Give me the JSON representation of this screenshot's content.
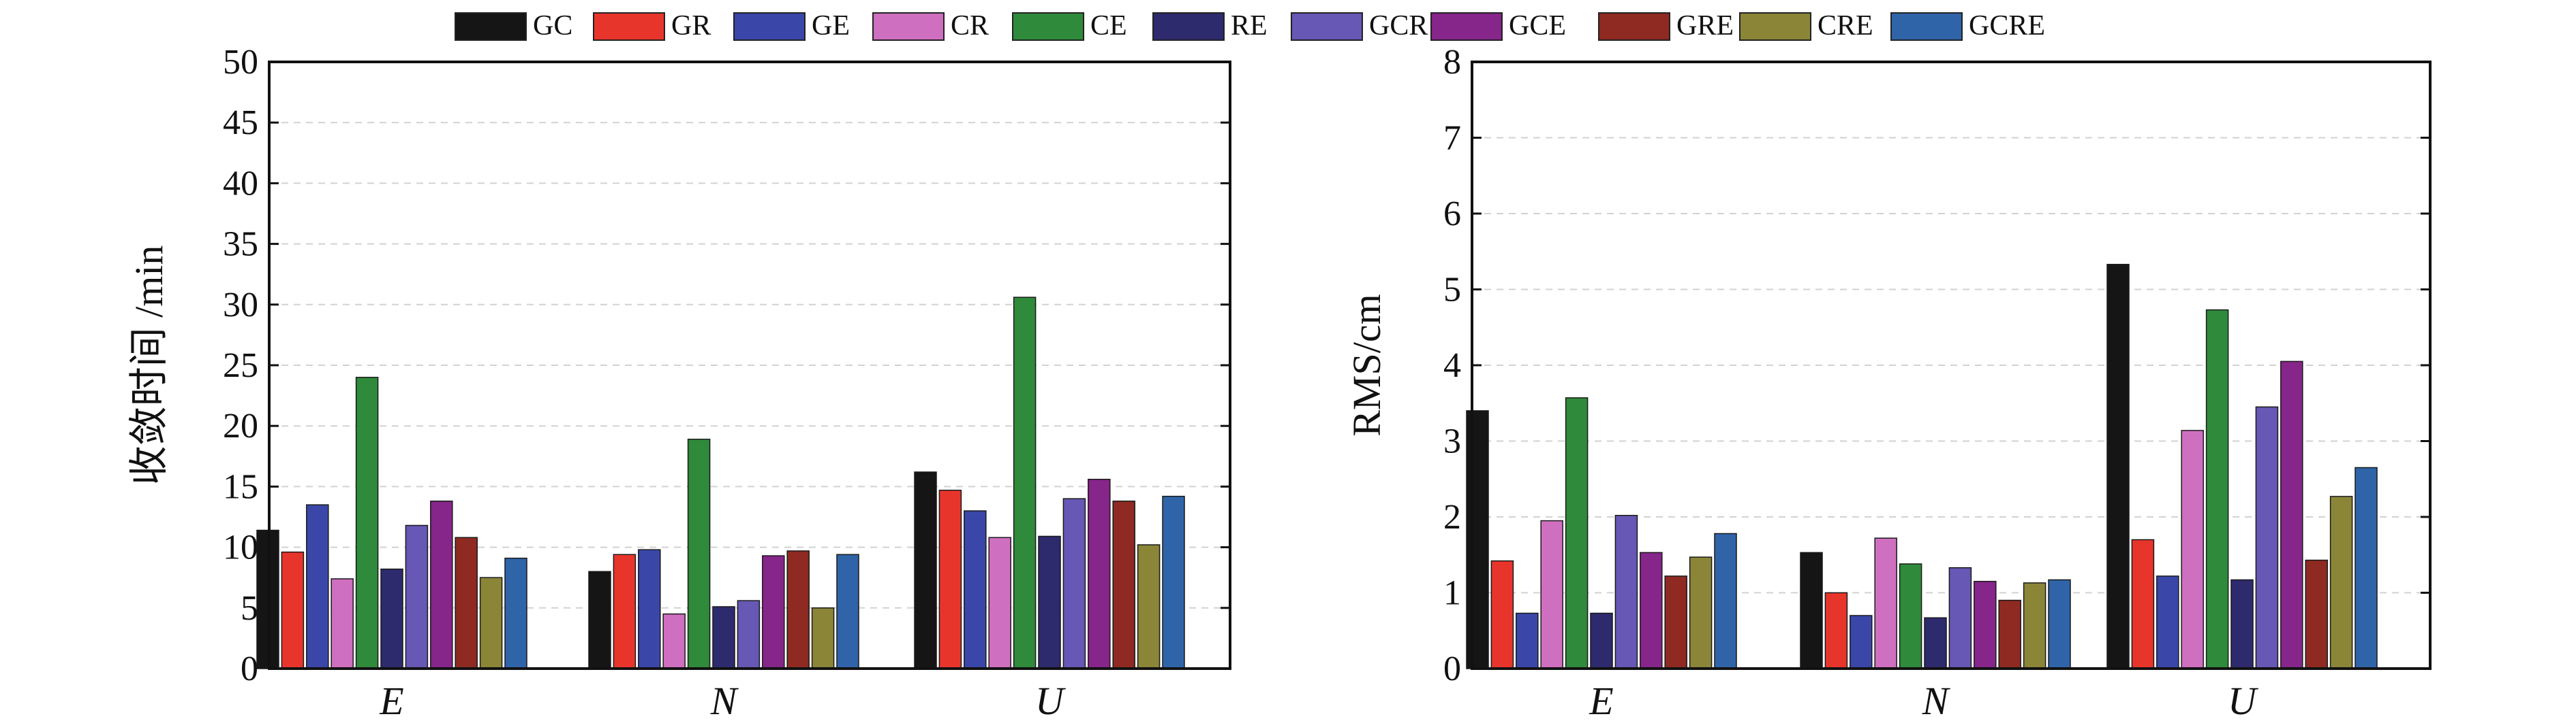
{
  "series_colors": {
    "GC": "#151515",
    "GR": "#e8352c",
    "GE": "#3a47a8",
    "CR": "#cf6fc0",
    "CE": "#2f8a3b",
    "RE": "#2e2a6e",
    "GCR": "#6658b4",
    "GCE": "#86258a",
    "GRE": "#8e2a22",
    "CRE": "#8b8538",
    "GCRE": "#2f64a8"
  },
  "chart_data": [
    {
      "type": "bar",
      "title": "",
      "xlabel": "",
      "ylabel": "收敛时间 /min",
      "categories": [
        "E",
        "N",
        "U"
      ],
      "ylim": [
        0,
        50
      ],
      "yticks": [
        "0",
        "5",
        "10",
        "15",
        "20",
        "25",
        "30",
        "35",
        "40",
        "45",
        "50"
      ],
      "grid": "horizontal dashed",
      "legend_position": "top",
      "series": [
        {
          "name": "GC",
          "values": [
            11.4,
            8.0,
            16.2
          ]
        },
        {
          "name": "GR",
          "values": [
            9.6,
            9.4,
            14.7
          ]
        },
        {
          "name": "GE",
          "values": [
            13.5,
            9.8,
            13.0
          ]
        },
        {
          "name": "CR",
          "values": [
            7.4,
            4.5,
            10.8
          ]
        },
        {
          "name": "CE",
          "values": [
            24.0,
            18.9,
            30.6
          ]
        },
        {
          "name": "RE",
          "values": [
            8.2,
            5.1,
            10.9
          ]
        },
        {
          "name": "GCR",
          "values": [
            11.8,
            5.6,
            14.0
          ]
        },
        {
          "name": "GCE",
          "values": [
            13.8,
            9.3,
            15.6
          ]
        },
        {
          "name": "GRE",
          "values": [
            10.8,
            9.7,
            13.8
          ]
        },
        {
          "name": "CRE",
          "values": [
            7.5,
            5.0,
            10.2
          ]
        },
        {
          "name": "GCRE",
          "values": [
            9.1,
            9.4,
            14.2
          ]
        }
      ]
    },
    {
      "type": "bar",
      "title": "",
      "xlabel": "",
      "ylabel": "RMS/cm",
      "categories": [
        "E",
        "N",
        "U"
      ],
      "ylim": [
        0,
        8
      ],
      "yticks": [
        "0",
        "1",
        "2",
        "3",
        "4",
        "5",
        "6",
        "7",
        "8"
      ],
      "grid": "horizontal dashed",
      "legend_position": "top",
      "series": [
        {
          "name": "GC",
          "values": [
            3.4,
            1.53,
            5.33
          ]
        },
        {
          "name": "GR",
          "values": [
            1.42,
            1.0,
            1.7
          ]
        },
        {
          "name": "GE",
          "values": [
            0.73,
            0.7,
            1.22
          ]
        },
        {
          "name": "CR",
          "values": [
            1.95,
            1.72,
            3.14
          ]
        },
        {
          "name": "CE",
          "values": [
            3.57,
            1.38,
            4.73
          ]
        },
        {
          "name": "RE",
          "values": [
            0.73,
            0.67,
            1.17
          ]
        },
        {
          "name": "GCR",
          "values": [
            2.02,
            1.33,
            3.45
          ]
        },
        {
          "name": "GCE",
          "values": [
            1.53,
            1.15,
            4.05
          ]
        },
        {
          "name": "GRE",
          "values": [
            1.22,
            0.9,
            1.43
          ]
        },
        {
          "name": "CRE",
          "values": [
            1.47,
            1.13,
            2.27
          ]
        },
        {
          "name": "GCRE",
          "values": [
            1.78,
            1.17,
            2.65
          ]
        }
      ]
    }
  ]
}
